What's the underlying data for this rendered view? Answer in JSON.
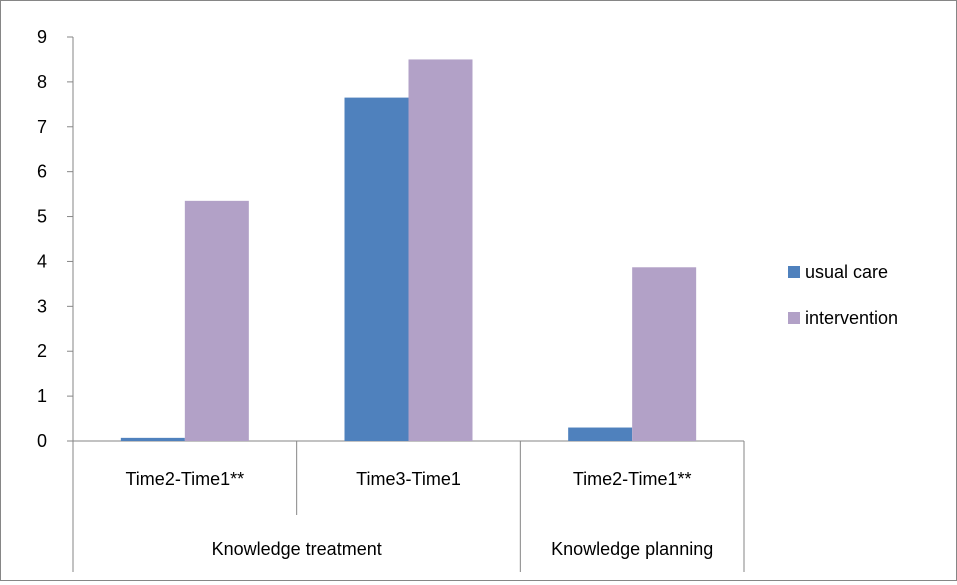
{
  "chart_data": {
    "type": "bar",
    "categories": [
      "Time2-Time1**",
      "Time3-Time1",
      "Time2-Time1**"
    ],
    "groups": [
      {
        "label": "Knowledge treatment",
        "span": [
          0,
          1
        ]
      },
      {
        "label": "Knowledge planning",
        "span": [
          2,
          2
        ]
      }
    ],
    "series": [
      {
        "name": "usual care",
        "color": "#4F81BD",
        "values": [
          0.07,
          7.65,
          0.3
        ]
      },
      {
        "name": "intervention",
        "color": "#B2A1C7",
        "values": [
          5.35,
          8.5,
          3.87
        ]
      }
    ],
    "ylim": [
      0,
      9
    ],
    "yticks": [
      "0",
      "1",
      "2",
      "3",
      "4",
      "5",
      "6",
      "7",
      "8",
      "9"
    ],
    "grid": false,
    "legend_position": "right",
    "title": "",
    "xlabel": "",
    "ylabel": ""
  }
}
